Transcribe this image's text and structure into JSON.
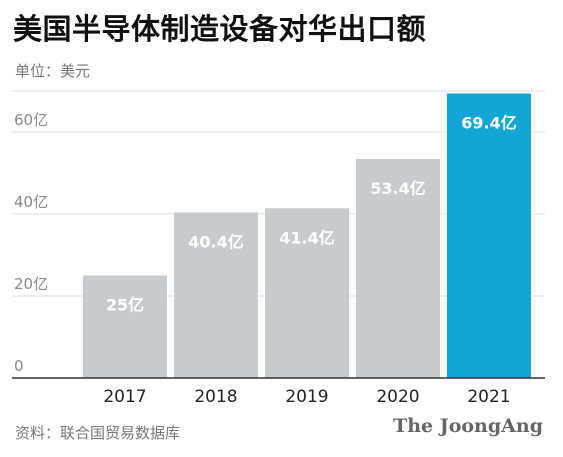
{
  "header": {
    "title": "美国半导体制造设备对华出口额",
    "unit": "单位：美元"
  },
  "footer": {
    "source": "资料：联合国贸易数据库",
    "brand": "The JoongAng"
  },
  "colors": {
    "bar_default": "#c7cbce",
    "bar_highlight": "#11a6d3",
    "grid": "#dcdcdc",
    "baseline": "#333333"
  },
  "chart_data": {
    "type": "bar",
    "title": "美国半导体制造设备对华出口额",
    "xlabel": "",
    "ylabel": "单位：美元",
    "categories": [
      "2017",
      "2018",
      "2019",
      "2020",
      "2021"
    ],
    "values": [
      25,
      40.4,
      41.4,
      53.4,
      69.4
    ],
    "data_labels": [
      "25亿",
      "40.4亿",
      "41.4亿",
      "53.4亿",
      "69.4亿"
    ],
    "highlight_index": 4,
    "ylim": [
      0,
      70
    ],
    "yticks": [
      0,
      20,
      40,
      60
    ],
    "ytick_labels": [
      "0",
      "20亿",
      "40亿",
      "60亿"
    ],
    "grid": true,
    "legend": "none"
  }
}
